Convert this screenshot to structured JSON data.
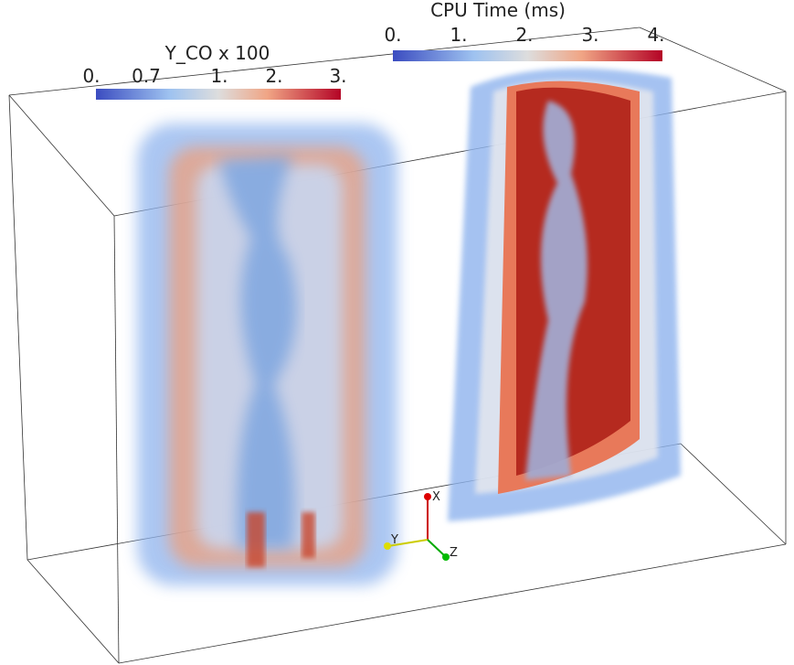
{
  "colorbars": [
    {
      "title": "Y_CO x 100",
      "ticks": [
        "0.",
        "0.7",
        "1.",
        "2.",
        "3."
      ]
    },
    {
      "title": "CPU Time (ms)",
      "ticks": [
        "0.",
        "1.",
        "2.",
        "3.",
        "4."
      ]
    }
  ],
  "axes": {
    "x": "X",
    "y": "Y",
    "z": "Z"
  }
}
